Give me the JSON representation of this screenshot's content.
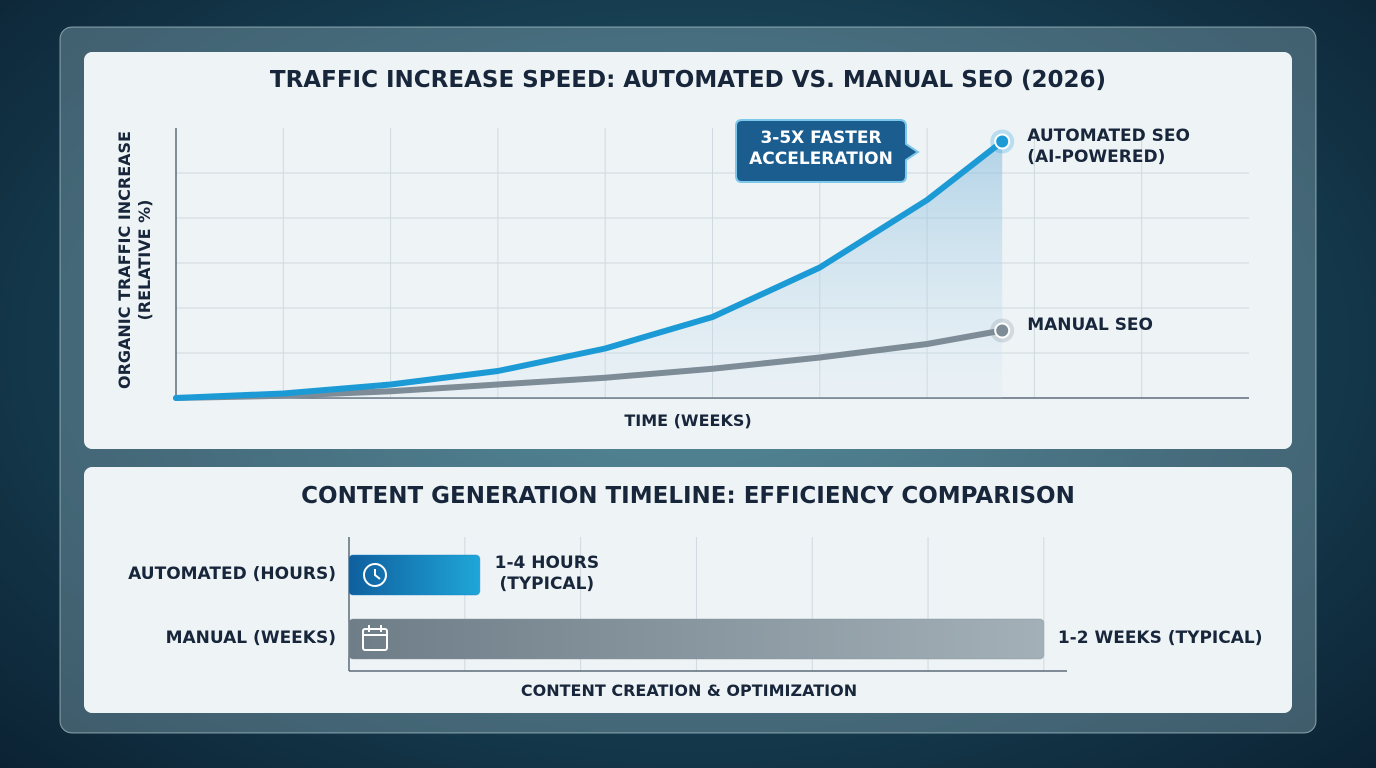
{
  "chart_data": [
    {
      "type": "line",
      "title": "TRAFFIC INCREASE SPEED: AUTOMATED VS. MANUAL SEO (2026)",
      "x_label": "TIME (WEEKS)",
      "y_label": "ORGANIC TRAFFIC INCREASE (RELATIVE %)",
      "annotation": "3-5X FASTER ACCELERATION",
      "x": [
        0,
        1,
        2,
        3,
        4,
        5,
        6,
        7,
        7.7
      ],
      "xlim": [
        0,
        10
      ],
      "ylim": [
        0,
        6
      ],
      "grid": true,
      "series": [
        {
          "name": "AUTOMATED SEO (AI-POWERED)",
          "color": "#1b9ad6",
          "values": [
            0,
            0.1,
            0.3,
            0.6,
            1.1,
            1.8,
            2.9,
            4.4,
            5.7
          ]
        },
        {
          "name": "MANUAL SEO",
          "color": "#7d8c96",
          "values": [
            0,
            0.05,
            0.15,
            0.3,
            0.45,
            0.65,
            0.9,
            1.2,
            1.5
          ]
        }
      ]
    },
    {
      "type": "bar",
      "title": "CONTENT GENERATION TIMELINE: EFFICIENCY COMPARISON",
      "x_label": "CONTENT CREATION & OPTIMIZATION",
      "categories": [
        "AUTOMATED (HOURS)",
        "MANUAL (WEEKS)"
      ],
      "values": [
        1.13,
        6.0
      ],
      "notes": [
        "1-4 HOURS (TYPICAL)",
        "1-2 WEEKS (TYPICAL)"
      ],
      "colors": [
        "#1780c2",
        "#7f8e98"
      ],
      "xlim": [
        0,
        6.2
      ],
      "grid": true
    }
  ]
}
